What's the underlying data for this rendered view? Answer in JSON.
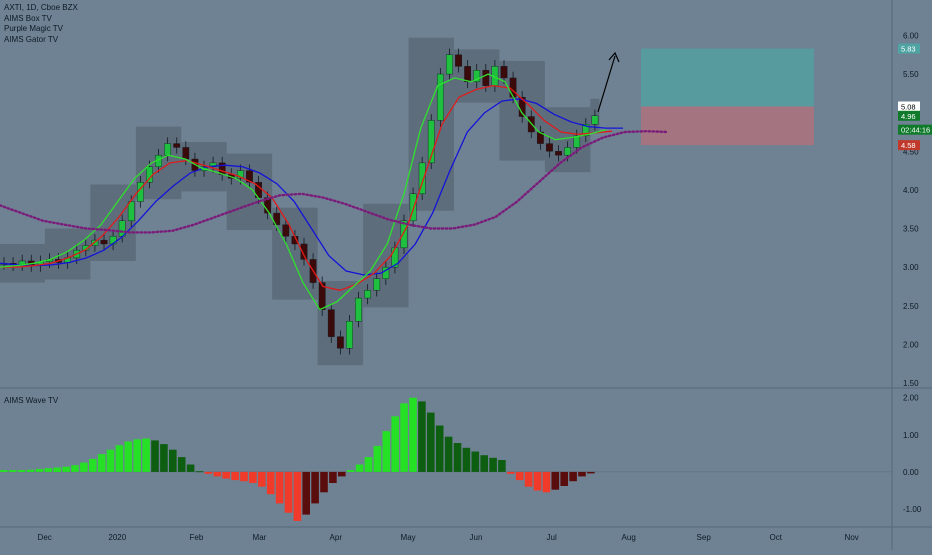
{
  "header": {
    "symbol_line": "AXTI, 1D, Cboe BZX",
    "indicators": [
      "AIMS Box TV",
      "Purple Magic TV",
      "AIMS Gator TV"
    ]
  },
  "subpanel": {
    "title": "AIMS Wave TV"
  },
  "colors": {
    "background": "#6f8293",
    "candle_up": "#1fbf3f",
    "candle_down": "#3b0a0a",
    "box_fill": "#4a5460",
    "gator_green": "#2fe02f",
    "gator_red": "#e01b1b",
    "gator_blue": "#1414d8",
    "purple_magic": "#7a1d7a",
    "wave_up_bright": "#26e026",
    "wave_up_dark": "#0e5e12",
    "wave_down_bright": "#f03a2a",
    "wave_down_dark": "#5a0d0d",
    "target_zone": "#4fa3a3",
    "stop_zone": "#b5707a"
  },
  "price_tags": [
    {
      "label": "5.83",
      "value": 5.83,
      "color": "#4fa3a3"
    },
    {
      "label": "5.08",
      "value": 5.08,
      "color": "#ffffff"
    },
    {
      "label": "4.96",
      "value": 4.96,
      "color": "#0e7a2a"
    },
    {
      "label": "02:44:16",
      "value": 4.78,
      "color": "#0e7a2a"
    },
    {
      "label": "4.58",
      "value": 4.58,
      "color": "#c0392b"
    }
  ],
  "chart_data": [
    {
      "type": "candlestick",
      "title": "AXTI, 1D, Cboe BZX",
      "ylim": [
        1.5,
        6.2
      ],
      "y_ticks": [
        "1.50",
        "2.00",
        "2.50",
        "3.00",
        "3.50",
        "4.00",
        "4.50",
        "5.00",
        "5.50",
        "6.00"
      ],
      "x_ticks": [
        "Dec",
        "2020",
        "Feb",
        "Mar",
        "Apr",
        "May",
        "Jun",
        "Jul",
        "Aug",
        "Sep",
        "Oct",
        "Nov"
      ],
      "close_series": [
        3.05,
        3.03,
        3.08,
        3.02,
        3.07,
        3.1,
        3.06,
        3.12,
        3.22,
        3.28,
        3.35,
        3.3,
        3.4,
        3.6,
        3.85,
        4.1,
        4.3,
        4.45,
        4.6,
        4.55,
        4.4,
        4.25,
        4.3,
        4.35,
        4.2,
        4.15,
        4.25,
        4.1,
        3.9,
        3.7,
        3.55,
        3.4,
        3.3,
        3.1,
        2.8,
        2.45,
        2.1,
        1.95,
        2.3,
        2.6,
        2.7,
        2.85,
        3.0,
        3.25,
        3.6,
        3.95,
        4.35,
        4.9,
        5.5,
        5.75,
        5.6,
        5.4,
        5.55,
        5.35,
        5.6,
        5.45,
        5.2,
        4.95,
        4.75,
        4.6,
        4.5,
        4.45,
        4.55,
        4.7,
        4.85,
        4.96
      ],
      "gator": {
        "green": [
          3.0,
          3.02,
          3.05,
          3.1,
          3.2,
          3.35,
          3.55,
          3.85,
          4.15,
          4.35,
          4.45,
          4.4,
          4.28,
          4.22,
          4.15,
          4.0,
          3.7,
          3.3,
          2.8,
          2.45,
          2.55,
          2.75,
          2.95,
          3.3,
          3.95,
          4.8,
          5.35,
          5.45,
          5.4,
          5.5,
          5.4,
          5.0,
          4.75,
          4.65,
          4.68,
          4.72,
          4.78
        ],
        "red": [
          3.0,
          3.0,
          3.02,
          3.05,
          3.12,
          3.22,
          3.4,
          3.65,
          3.95,
          4.2,
          4.35,
          4.38,
          4.32,
          4.25,
          4.18,
          4.08,
          3.9,
          3.55,
          3.1,
          2.75,
          2.7,
          2.78,
          2.92,
          3.15,
          3.55,
          4.2,
          4.85,
          5.2,
          5.3,
          5.35,
          5.32,
          5.12,
          4.9,
          4.75,
          4.72,
          4.74,
          4.76
        ],
        "blue": [
          3.05,
          3.03,
          3.02,
          3.03,
          3.06,
          3.12,
          3.22,
          3.38,
          3.6,
          3.85,
          4.05,
          4.22,
          4.3,
          4.32,
          4.3,
          4.22,
          4.08,
          3.85,
          3.5,
          3.15,
          2.95,
          2.9,
          2.92,
          3.05,
          3.3,
          3.7,
          4.25,
          4.75,
          5.0,
          5.15,
          5.18,
          5.12,
          4.98,
          4.88,
          4.82,
          4.8,
          4.8
        ]
      },
      "purple_magic": [
        3.8,
        3.7,
        3.6,
        3.55,
        3.5,
        3.48,
        3.45,
        3.45,
        3.47,
        3.55,
        3.65,
        3.75,
        3.85,
        3.93,
        3.95,
        3.9,
        3.82,
        3.72,
        3.62,
        3.55,
        3.5,
        3.5,
        3.55,
        3.65,
        3.85,
        4.1,
        4.35,
        4.55,
        4.68,
        4.75,
        4.76,
        4.75
      ],
      "target_zone": [
        5.08,
        5.83
      ],
      "stop_zone": [
        4.58,
        5.08
      ]
    },
    {
      "type": "bar",
      "title": "AIMS Wave TV",
      "ylim": [
        -1.35,
        2.1
      ],
      "y_ticks": [
        "2.00",
        "1.00",
        "0.00",
        "-1.00"
      ],
      "values": [
        0.05,
        0.05,
        0.05,
        0.06,
        0.08,
        0.1,
        0.12,
        0.14,
        0.18,
        0.25,
        0.35,
        0.48,
        0.6,
        0.72,
        0.82,
        0.88,
        0.9,
        0.85,
        0.75,
        0.6,
        0.4,
        0.2,
        0.02,
        -0.05,
        -0.12,
        -0.18,
        -0.22,
        -0.25,
        -0.3,
        -0.4,
        -0.6,
        -0.85,
        -1.1,
        -1.32,
        -1.15,
        -0.85,
        -0.55,
        -0.3,
        -0.12,
        0.05,
        0.2,
        0.4,
        0.7,
        1.1,
        1.5,
        1.85,
        2.0,
        1.9,
        1.6,
        1.25,
        0.95,
        0.78,
        0.65,
        0.55,
        0.45,
        0.38,
        0.32,
        -0.05,
        -0.22,
        -0.4,
        -0.5,
        -0.55,
        -0.48,
        -0.38,
        -0.25,
        -0.12,
        -0.04
      ]
    }
  ]
}
